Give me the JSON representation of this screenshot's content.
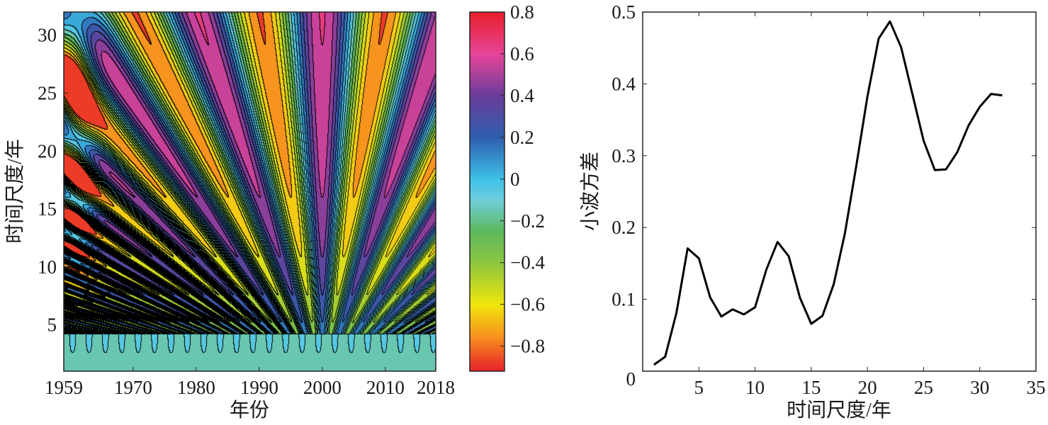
{
  "chart_data": [
    {
      "type": "contour",
      "xlabel": "年份",
      "ylabel": "时间尺度/年",
      "xlim": [
        1959,
        2018
      ],
      "ylim": [
        1,
        32
      ],
      "xticks": [
        "1959",
        "1970",
        "1980",
        "1990",
        "2000",
        "2010",
        "2018"
      ],
      "xtick_values": [
        1959,
        1970,
        1980,
        1990,
        2000,
        2010,
        2018
      ],
      "yticks": [
        "5",
        "10",
        "15",
        "20",
        "25",
        "30"
      ],
      "ytick_values": [
        5,
        10,
        15,
        20,
        25,
        30
      ],
      "colorbar": {
        "ticks": [
          "0.8",
          "0.6",
          "0.4",
          "0.2",
          "0",
          "−0.2",
          "−0.4",
          "−0.6",
          "−0.8"
        ],
        "tick_values": [
          0.8,
          0.6,
          0.4,
          0.2,
          0,
          -0.2,
          -0.4,
          -0.6,
          -0.8
        ],
        "clim": [
          -0.92,
          0.8
        ],
        "colormap": [
          {
            "v": -0.92,
            "color": "#e8202a"
          },
          {
            "v": -0.75,
            "color": "#f7941d"
          },
          {
            "v": -0.6,
            "color": "#f2e60e"
          },
          {
            "v": -0.4,
            "color": "#8cc63f"
          },
          {
            "v": -0.25,
            "color": "#5cb85c"
          },
          {
            "v": -0.1,
            "color": "#6fcfdc"
          },
          {
            "v": 0.0,
            "color": "#3ec1e8"
          },
          {
            "v": 0.2,
            "color": "#2f5faf"
          },
          {
            "v": 0.4,
            "color": "#6a3d9a"
          },
          {
            "v": 0.6,
            "color": "#e8449a"
          },
          {
            "v": 0.8,
            "color": "#e8202a"
          }
        ]
      },
      "grid": false
    },
    {
      "type": "line",
      "xlabel": "时间尺度/年",
      "ylabel": "小波方差",
      "xlim": [
        0,
        35
      ],
      "ylim": [
        0,
        0.5
      ],
      "xticks": [
        "5",
        "10",
        "15",
        "20",
        "25",
        "30",
        "35"
      ],
      "xtick_values": [
        5,
        10,
        15,
        20,
        25,
        30,
        35
      ],
      "yticks": [
        "0",
        "0.1",
        "0.2",
        "0.3",
        "0.4",
        "0.5"
      ],
      "ytick_values": [
        0,
        0.1,
        0.2,
        0.3,
        0.4,
        0.5
      ],
      "x": [
        1,
        2,
        3,
        4,
        5,
        6,
        7,
        8,
        9,
        10,
        11,
        12,
        13,
        14,
        15,
        16,
        17,
        18,
        19,
        20,
        21,
        22,
        23,
        24,
        25,
        26,
        27,
        28,
        29,
        30,
        31,
        32
      ],
      "y": [
        0.009,
        0.02,
        0.081,
        0.171,
        0.157,
        0.103,
        0.076,
        0.086,
        0.079,
        0.089,
        0.141,
        0.18,
        0.16,
        0.102,
        0.066,
        0.077,
        0.121,
        0.192,
        0.285,
        0.382,
        0.463,
        0.487,
        0.451,
        0.386,
        0.321,
        0.28,
        0.281,
        0.305,
        0.342,
        0.368,
        0.386,
        0.384
      ],
      "color": "#000000",
      "grid": false
    }
  ]
}
